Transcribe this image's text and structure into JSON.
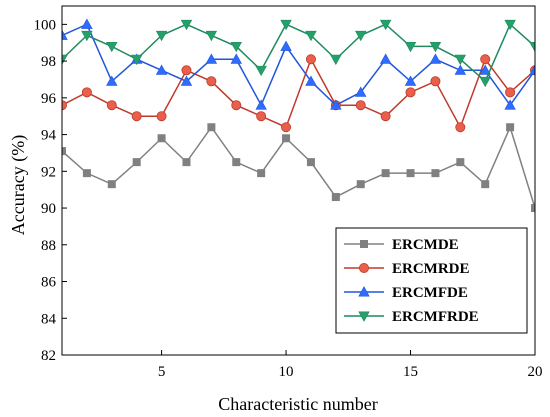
{
  "chart_data": {
    "type": "line",
    "xlabel": "Characteristic number",
    "ylabel": "Accuracy (%)",
    "xlim": [
      1,
      20
    ],
    "ylim": [
      82,
      101
    ],
    "xticks": [
      5,
      10,
      15,
      20
    ],
    "yticks": [
      82,
      84,
      86,
      88,
      90,
      92,
      94,
      96,
      98,
      100
    ],
    "x": [
      1,
      2,
      3,
      4,
      5,
      6,
      7,
      8,
      9,
      10,
      11,
      12,
      13,
      14,
      15,
      16,
      17,
      18,
      19,
      20
    ],
    "legend_position": "bottom-right",
    "grid": false,
    "series": [
      {
        "name": "ERCMDE",
        "color": "#808080",
        "marker": "square",
        "values": [
          93.1,
          91.9,
          91.3,
          92.5,
          93.8,
          92.5,
          94.4,
          92.5,
          91.9,
          93.8,
          92.5,
          90.6,
          91.3,
          91.9,
          91.9,
          91.9,
          92.5,
          91.3,
          94.4,
          90.0
        ]
      },
      {
        "name": "ERCMRDE",
        "color": "#c0392b",
        "fill": "#e8604c",
        "marker": "circle",
        "values": [
          95.6,
          96.3,
          95.6,
          95.0,
          95.0,
          97.5,
          96.9,
          95.6,
          95.0,
          94.4,
          98.1,
          95.6,
          95.6,
          95.0,
          96.3,
          96.9,
          94.4,
          98.1,
          96.3,
          97.5
        ]
      },
      {
        "name": "ERCMFDE",
        "color": "#1f56d9",
        "fill": "#2f6bff",
        "marker": "triangle-up",
        "values": [
          99.4,
          100.0,
          96.9,
          98.1,
          97.5,
          96.9,
          98.1,
          98.1,
          95.6,
          98.8,
          96.9,
          95.6,
          96.3,
          98.1,
          96.9,
          98.1,
          97.5,
          97.5,
          95.6,
          97.5
        ]
      },
      {
        "name": "ERCMFRDE",
        "color": "#1e8a5e",
        "fill": "#24a06a",
        "marker": "triangle-down",
        "values": [
          98.1,
          99.4,
          98.8,
          98.1,
          99.4,
          100.0,
          99.4,
          98.8,
          97.5,
          100.0,
          99.4,
          98.1,
          99.4,
          100.0,
          98.8,
          98.8,
          98.1,
          96.9,
          100.0,
          98.8
        ]
      }
    ]
  }
}
